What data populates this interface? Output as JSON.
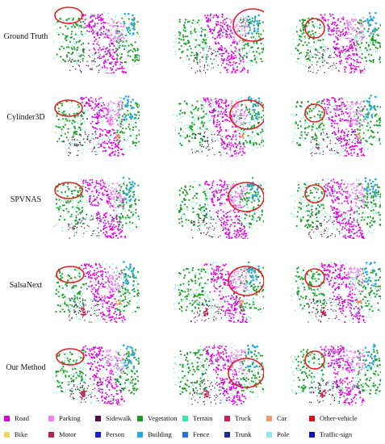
{
  "rows": [
    {
      "label": "Ground Truth"
    },
    {
      "label": "Cylinder3D"
    },
    {
      "label": "SPVNAS"
    },
    {
      "label": "SalsaNext"
    },
    {
      "label": "Our Method"
    }
  ],
  "legend": [
    {
      "label": "Road",
      "color": "#e000e0"
    },
    {
      "label": "Parking",
      "color": "#f27ef2"
    },
    {
      "label": "Sidewalk",
      "color": "#4b0f46"
    },
    {
      "label": "Vegetation",
      "color": "#1f9d2a"
    },
    {
      "label": "Terrain",
      "color": "#35e8a4"
    },
    {
      "label": "Truck",
      "color": "#cc1f55"
    },
    {
      "label": "Car",
      "color": "#f39a6b"
    },
    {
      "label": "Other-vehicle",
      "color": "#e01010"
    },
    {
      "label": "Bike",
      "color": "#f2d45e"
    },
    {
      "label": "Motor",
      "color": "#b8254c"
    },
    {
      "label": "Person",
      "color": "#1a1fd8"
    },
    {
      "label": "Building",
      "color": "#29a9e0"
    },
    {
      "label": "Fence",
      "color": "#2c6fd1"
    },
    {
      "label": "Trunk",
      "color": "#1d2f8a"
    },
    {
      "label": "Pole",
      "color": "#8fe6f5"
    },
    {
      "label": "Traffic-sign",
      "color": "#1010b8"
    }
  ]
}
